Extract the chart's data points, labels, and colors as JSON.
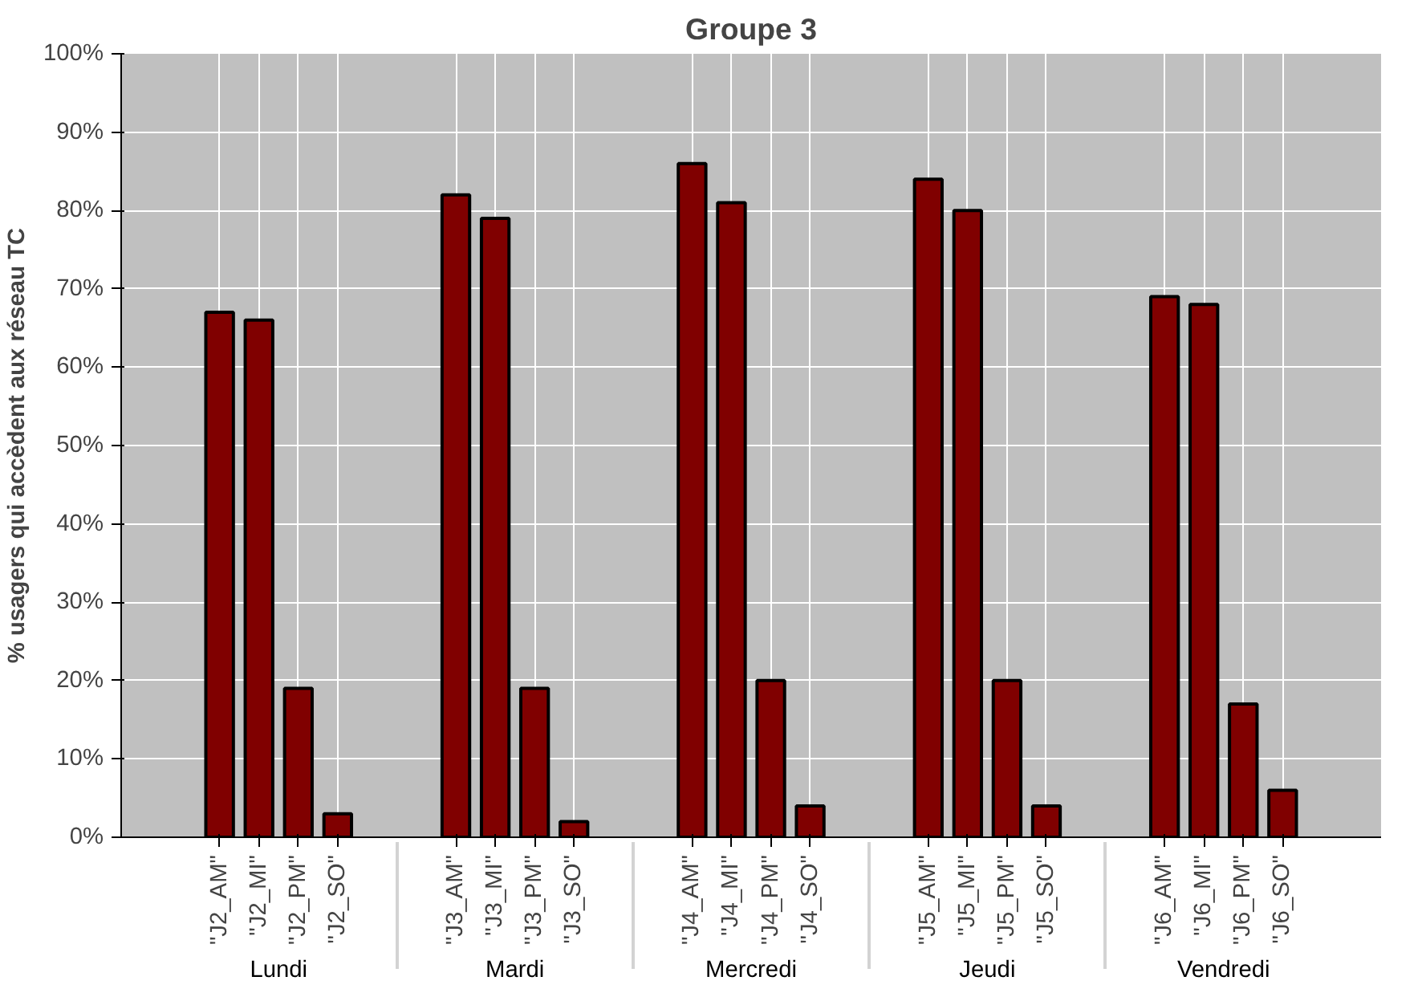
{
  "chart_data": {
    "type": "bar",
    "title": "Groupe 3",
    "ylabel": "% usagers qui accèdent aux réseau TC",
    "categories": [
      "\"J2_AM\"",
      "\"J2_MI\"",
      "\"J2_PM\"",
      "\"J2_SO\"",
      "\"J3_AM\"",
      "\"J3_MI\"",
      "\"J3_PM\"",
      "\"J3_SO\"",
      "\"J4_AM\"",
      "\"J4_MI\"",
      "\"J4_PM\"",
      "\"J4_SO\"",
      "\"J5_AM\"",
      "\"J5_MI\"",
      "\"J5_PM\"",
      "\"J5_SO\"",
      "\"J6_AM\"",
      "\"J6_MI\"",
      "\"J6_PM\"",
      "\"J6_SO\""
    ],
    "annotations": [
      "Lundi",
      "Mardi",
      "Mercredi",
      "Jeudi",
      "Vendredi"
    ],
    "values": [
      67,
      66,
      19,
      3,
      82,
      79,
      19,
      2,
      86,
      81,
      20,
      4,
      84,
      80,
      20,
      4,
      69,
      68,
      17,
      6
    ],
    "color": "#800000",
    "ylim": [
      0,
      100
    ],
    "yticks": [
      {
        "value": 0,
        "label": "0%"
      },
      {
        "value": 10,
        "label": "10%"
      },
      {
        "value": 20,
        "label": "20%"
      },
      {
        "value": 30,
        "label": "30%"
      },
      {
        "value": 40,
        "label": "40%"
      },
      {
        "value": 50,
        "label": "50%"
      },
      {
        "value": 60,
        "label": "60%"
      },
      {
        "value": 70,
        "label": "70%"
      },
      {
        "value": 80,
        "label": "80%"
      },
      {
        "value": 90,
        "label": "90%"
      },
      {
        "value": 100,
        "label": "100%"
      }
    ],
    "grid": true
  }
}
